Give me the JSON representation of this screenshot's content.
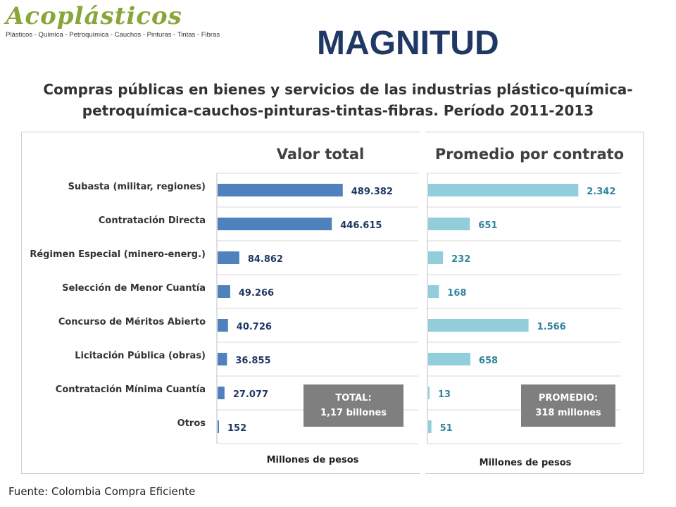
{
  "header": {
    "logo_text": "Acoplásticos",
    "logo_tagline": "Plásticos - Química - Petroquímica - Cauchos - Pinturas - Tintas - Fibras",
    "title": "MAGNITUD",
    "subtitle_line1": "Compras públicas en bienes y servicios de las industrias plástico-química-",
    "subtitle_line2": "petroquímica-cauchos-pinturas-tintas-fibras. Período 2011-2013"
  },
  "chart_data": [
    {
      "type": "bar",
      "orientation": "horizontal",
      "title": "Valor total",
      "xlabel": "Millones de pesos",
      "categories": [
        "Subasta (militar, regiones)",
        "Contratación Directa",
        "Régimen Especial (minero-energ.)",
        "Selección de Menor Cuantía",
        "Concurso de Méritos Abierto",
        "Licitación Pública (obras)",
        "Contratación Mínima Cuantía",
        "Otros"
      ],
      "values": [
        489382,
        446615,
        84862,
        49266,
        40726,
        36855,
        27077,
        152
      ],
      "value_labels": [
        "489.382",
        "446.615",
        "84.862",
        "49.266",
        "40.726",
        "36.855",
        "27.077",
        "152"
      ],
      "xlim": [
        0,
        490000
      ],
      "color": "#4f81bd",
      "label_color": "#1f3864",
      "annotation": {
        "line1": "TOTAL:",
        "line2": "1,17 billones"
      }
    },
    {
      "type": "bar",
      "orientation": "horizontal",
      "title": "Promedio por contrato",
      "xlabel": "Millones de pesos",
      "categories": [
        "Subasta (militar, regiones)",
        "Contratación Directa",
        "Régimen Especial (minero-energ.)",
        "Selección de Menor Cuantía",
        "Concurso de Méritos Abierto",
        "Licitación Pública (obras)",
        "Contratación Mínima Cuantía",
        "Otros"
      ],
      "values": [
        2342,
        651,
        232,
        168,
        1566,
        658,
        13,
        51
      ],
      "value_labels": [
        "2.342",
        "651",
        "232",
        "168",
        "1.566",
        "658",
        "13",
        "51"
      ],
      "xlim": [
        0,
        2350
      ],
      "color": "#92cddc",
      "label_color": "#31859c",
      "annotation": {
        "line1": "PROMEDIO:",
        "line2": "318 millones"
      }
    }
  ],
  "footer": {
    "source": "Fuente: Colombia Compra Eficiente"
  },
  "colors": {
    "title": "#1f3864",
    "annotation_box": "#7f7f7f",
    "gridline": "#d9d9d9"
  }
}
